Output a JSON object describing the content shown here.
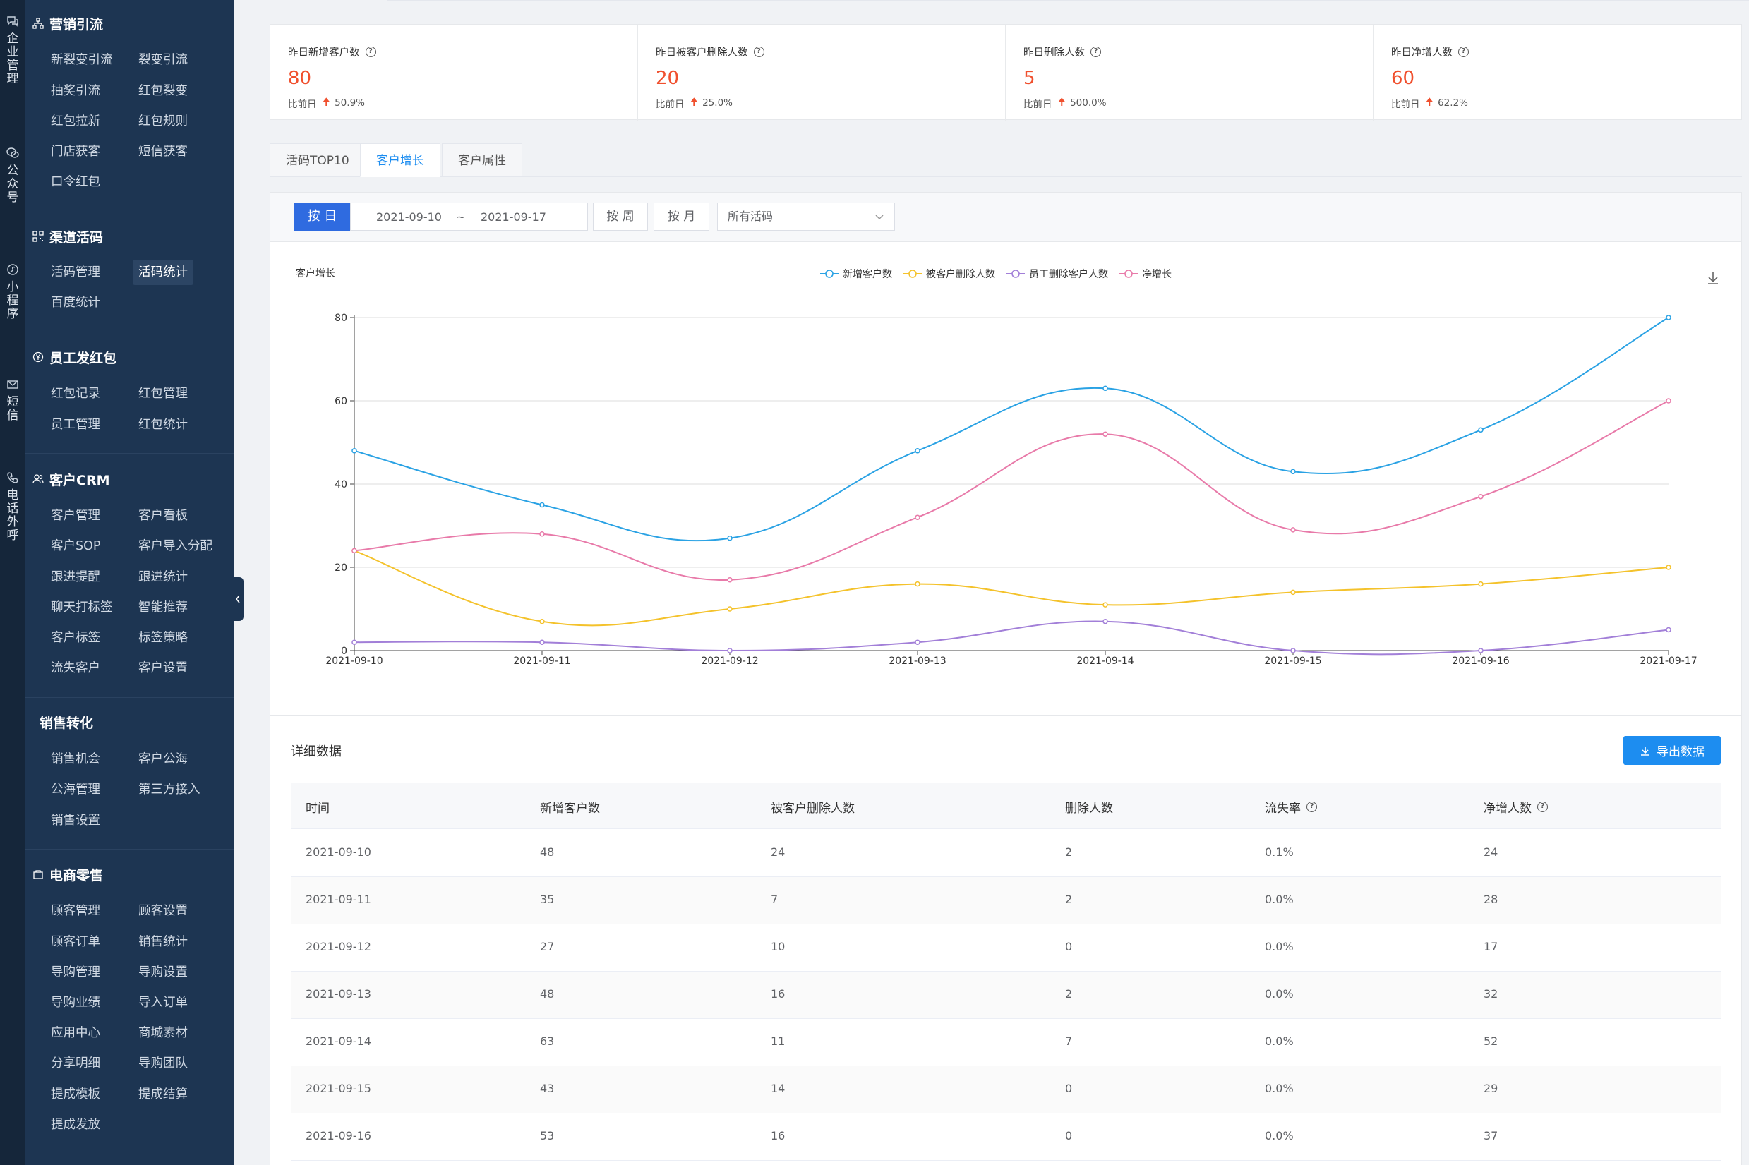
{
  "rail": {
    "items": [
      {
        "icon": "chat-bubbles-icon",
        "chars": [
          "企",
          "业",
          "管",
          "理"
        ]
      },
      {
        "icon": "chat-icon",
        "chars": [
          "公",
          "众",
          "号"
        ]
      },
      {
        "icon": "mini-program-icon",
        "chars": [
          "小",
          "程",
          "序"
        ]
      },
      {
        "icon": "mail-icon",
        "chars": [
          "短",
          "信"
        ]
      },
      {
        "icon": "phone-icon",
        "chars": [
          "电",
          "话",
          "外",
          "呼"
        ]
      }
    ]
  },
  "sidebar": {
    "sections": [
      {
        "title": "营销引流",
        "icon": "sitemap-icon",
        "items": [
          "新裂变引流",
          "裂变引流",
          "抽奖引流",
          "红包裂变",
          "红包拉新",
          "红包规则",
          "门店获客",
          "短信获客",
          "口令红包"
        ]
      },
      {
        "title": "渠道活码",
        "icon": "qrcode-icon",
        "items": [
          "活码管理",
          "活码统计",
          "百度统计"
        ],
        "active": "活码统计"
      },
      {
        "title": "员工发红包",
        "icon": "yen-icon",
        "items": [
          "红包记录",
          "红包管理",
          "员工管理",
          "红包统计"
        ]
      },
      {
        "title": "客户CRM",
        "icon": "users-icon",
        "items": [
          "客户管理",
          "客户看板",
          "客户SOP",
          "客户导入分配",
          "跟进提醒",
          "跟进统计",
          "聊天打标签",
          "智能推荐",
          "客户标签",
          "标签策略",
          "流失客户",
          "客户设置"
        ]
      },
      {
        "title": "销售转化",
        "icon": "",
        "items": [
          "销售机会",
          "客户公海",
          "公海管理",
          "第三方接入",
          "销售设置"
        ]
      },
      {
        "title": "电商零售",
        "icon": "shop-icon",
        "items": [
          "顾客管理",
          "顾客设置",
          "顾客订单",
          "销售统计",
          "导购管理",
          "导购设置",
          "导购业绩",
          "导入订单",
          "应用中心",
          "商城素材",
          "分享明细",
          "导购团队",
          "提成模板",
          "提成结算",
          "提成发放"
        ]
      }
    ]
  },
  "stats": [
    {
      "label": "昨日新增客户数",
      "value": "80",
      "cmp_label": "比前日",
      "cmp_value": "50.9%"
    },
    {
      "label": "昨日被客户删除人数",
      "value": "20",
      "cmp_label": "比前日",
      "cmp_value": "25.0%"
    },
    {
      "label": "昨日删除人数",
      "value": "5",
      "cmp_label": "比前日",
      "cmp_value": "500.0%"
    },
    {
      "label": "昨日净增人数",
      "value": "60",
      "cmp_label": "比前日",
      "cmp_value": "62.2%"
    }
  ],
  "tabs": [
    "活码TOP10",
    "客户增长",
    "客户属性"
  ],
  "active_tab": "客户增长",
  "filters": {
    "by_day": "按 日",
    "start_date": "2021-09-10",
    "tilde": "~",
    "end_date": "2021-09-17",
    "by_week": "按 周",
    "by_month": "按 月",
    "select_value": "所有活码"
  },
  "chart_data": {
    "type": "line",
    "title": "客户增长",
    "categories": [
      "2021-09-10",
      "2021-09-11",
      "2021-09-12",
      "2021-09-13",
      "2021-09-14",
      "2021-09-15",
      "2021-09-16",
      "2021-09-17"
    ],
    "ylim": [
      0,
      80
    ],
    "yticks": [
      0,
      20,
      40,
      60,
      80
    ],
    "grid": true,
    "legend_position": "top-center",
    "series": [
      {
        "name": "新增客户数",
        "color": "#2aa2e4",
        "values": [
          48,
          35,
          27,
          48,
          63,
          43,
          53,
          80
        ]
      },
      {
        "name": "被客户删除人数",
        "color": "#f4c22b",
        "values": [
          24,
          7,
          10,
          16,
          11,
          14,
          16,
          20
        ]
      },
      {
        "name": "员工删除客户人数",
        "color": "#a27fd8",
        "values": [
          2,
          2,
          0,
          2,
          7,
          0,
          0,
          5
        ]
      },
      {
        "name": "净增长",
        "color": "#e87aa9",
        "values": [
          24,
          28,
          17,
          32,
          52,
          29,
          37,
          60
        ]
      }
    ]
  },
  "detail": {
    "title": "详细数据",
    "export_label": "导出数据",
    "headers": [
      "时间",
      "新增客户数",
      "被客户删除人数",
      "删除人数",
      "流失率",
      "净增人数"
    ],
    "rows": [
      [
        "2021-09-10",
        "48",
        "24",
        "2",
        "0.1%",
        "24"
      ],
      [
        "2021-09-11",
        "35",
        "7",
        "2",
        "0.0%",
        "28"
      ],
      [
        "2021-09-12",
        "27",
        "10",
        "0",
        "0.0%",
        "17"
      ],
      [
        "2021-09-13",
        "48",
        "16",
        "2",
        "0.0%",
        "32"
      ],
      [
        "2021-09-14",
        "63",
        "11",
        "7",
        "0.0%",
        "52"
      ],
      [
        "2021-09-15",
        "43",
        "14",
        "0",
        "0.0%",
        "29"
      ],
      [
        "2021-09-16",
        "53",
        "16",
        "0",
        "0.0%",
        "37"
      ]
    ]
  }
}
